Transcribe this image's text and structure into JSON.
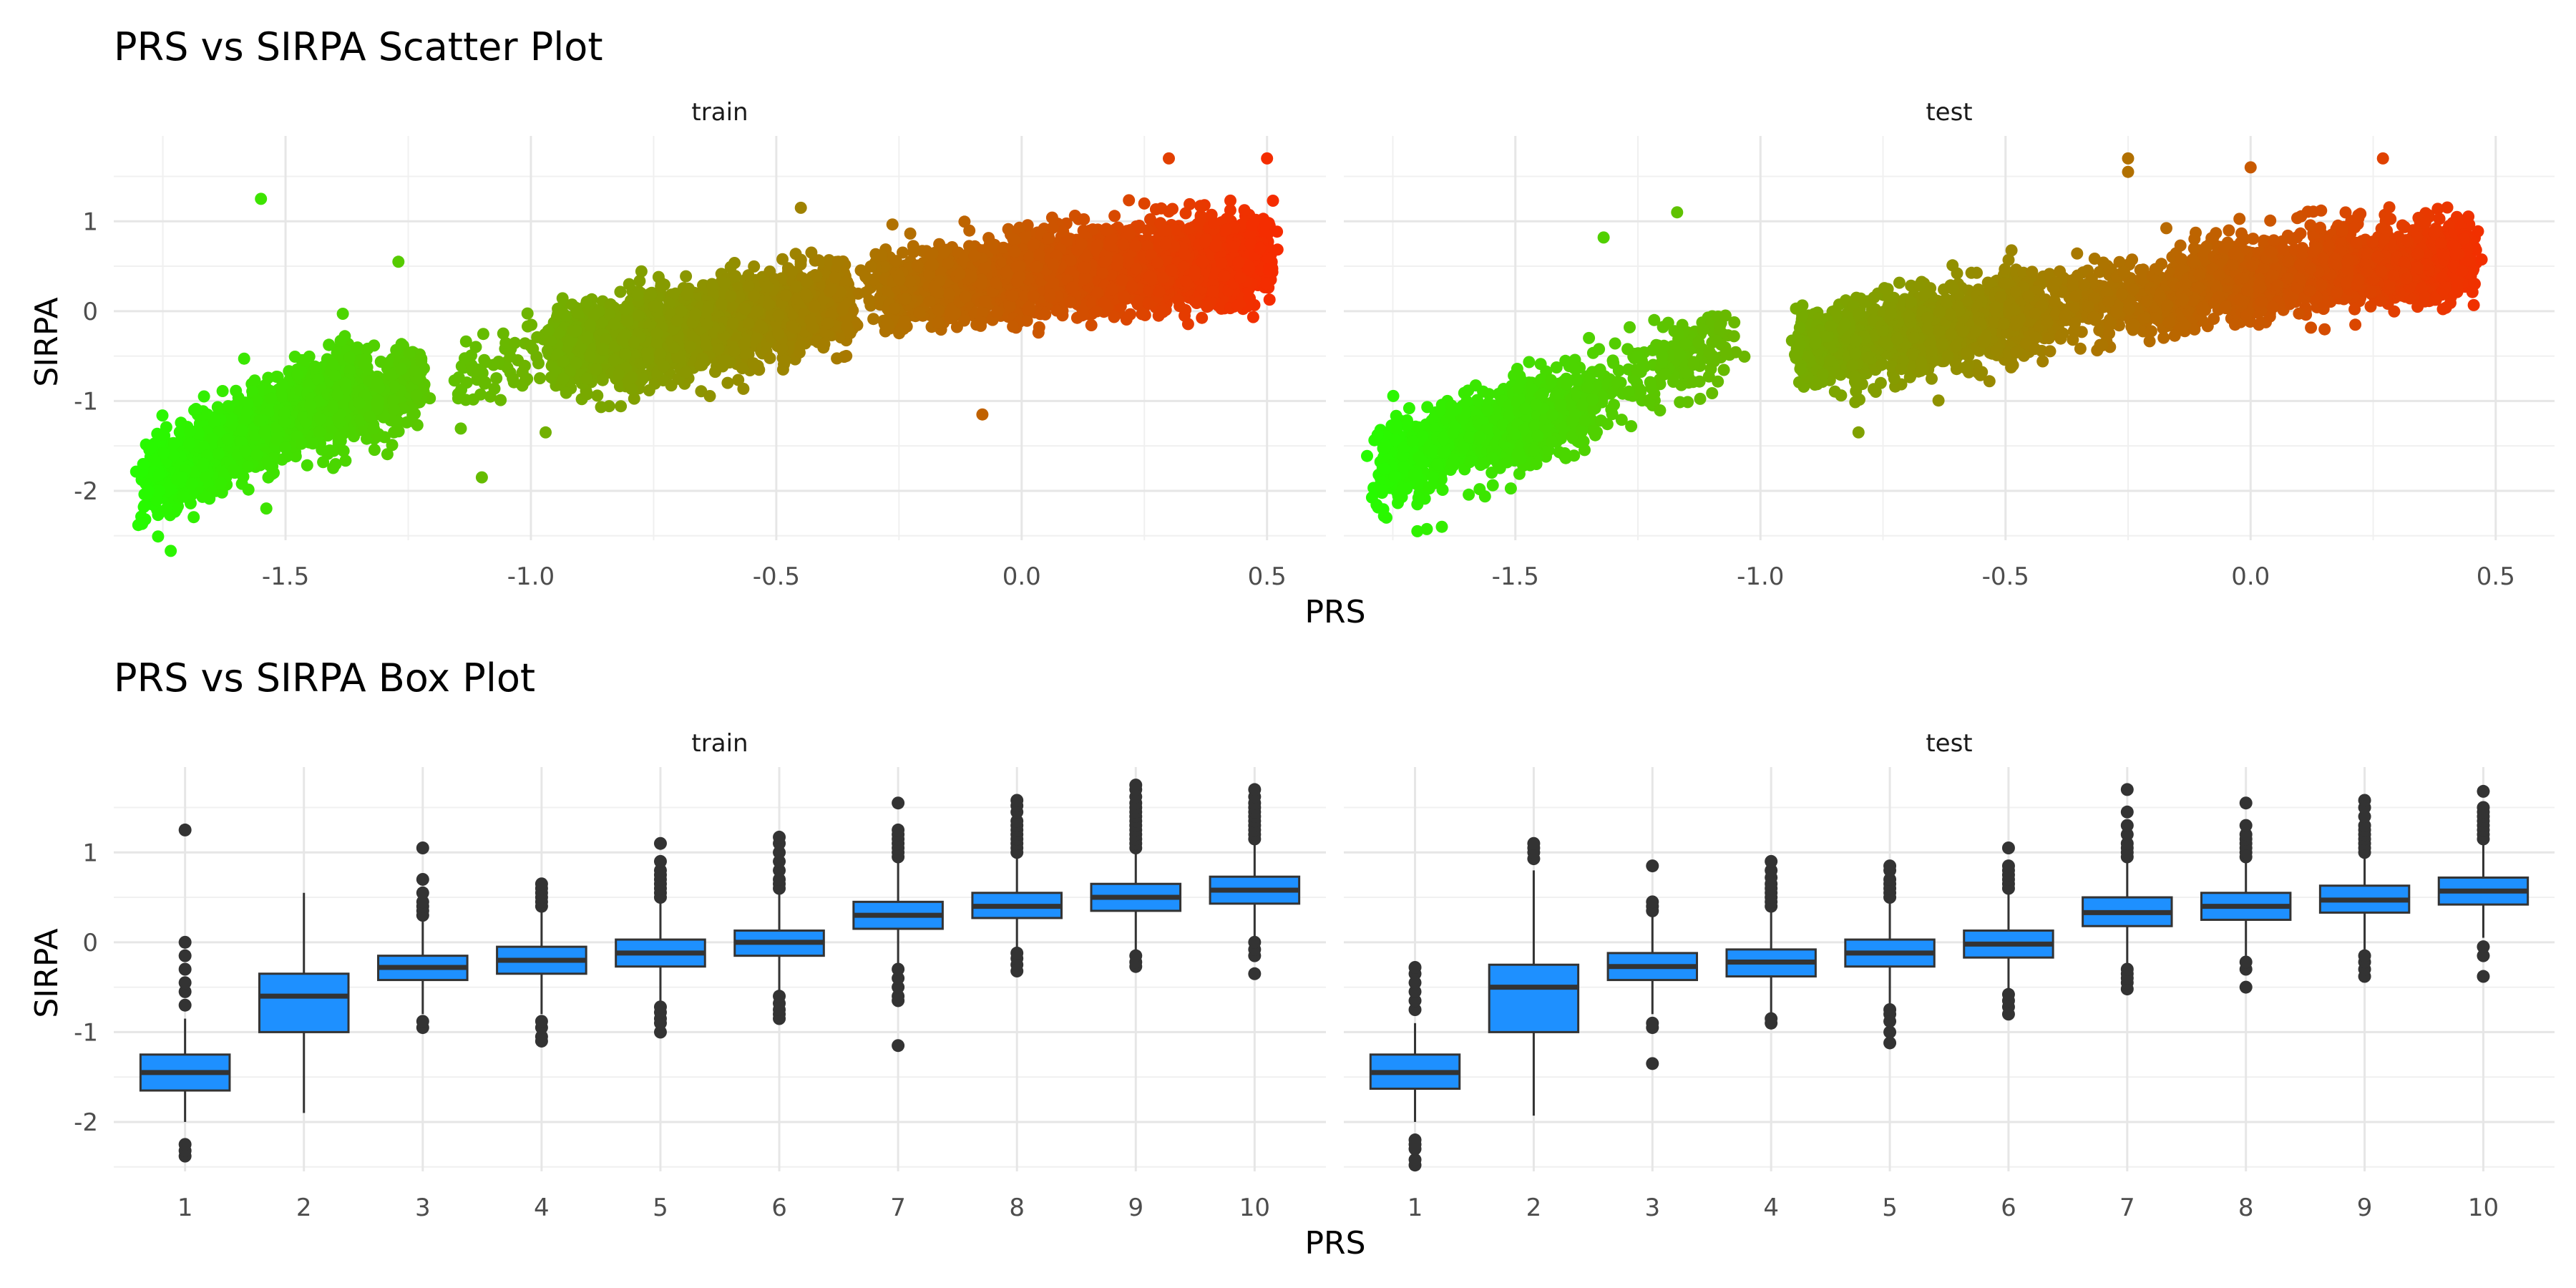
{
  "chart_data": [
    {
      "type": "scatter",
      "title": "PRS vs SIRPA Scatter Plot",
      "xlabel": "PRS",
      "ylabel": "SIRPA",
      "xlim": [
        -1.85,
        0.62
      ],
      "ylim": [
        -2.55,
        1.95
      ],
      "x_ticks": [
        -1.5,
        -1.0,
        -0.5,
        0.0,
        0.5
      ],
      "x_tick_labels": [
        "-1.5",
        "-1.0",
        "-0.5",
        "0.0",
        "0.5"
      ],
      "y_ticks": [
        1,
        0,
        -1,
        -2
      ],
      "y_tick_labels": [
        "1",
        "0",
        "-1",
        "-2"
      ],
      "grid": true,
      "color_scale": {
        "low": "#22ff00",
        "high": "#ff2200"
      },
      "facets": [
        {
          "label": "train",
          "clusters": [
            {
              "x_range": [
                -1.78,
                -1.35
              ],
              "y_mean_at_x_min": -1.9,
              "slope": 2.6,
              "count": 1700
            },
            {
              "x_range": [
                -1.45,
                -1.22
              ],
              "y_mean_at_x_min": -1.15,
              "slope": 1.5,
              "count": 450
            },
            {
              "x_range": [
                -1.15,
                -0.95
              ],
              "y_mean_at_x_min": -0.75,
              "slope": 1.6,
              "count": 70
            },
            {
              "x_range": [
                -0.95,
                -0.35
              ],
              "y_mean_at_x_min": -0.45,
              "slope": 0.95,
              "count": 2300
            },
            {
              "x_range": [
                -0.3,
                -0.02
              ],
              "y_mean_at_x_min": 0.25,
              "slope": 0.35,
              "count": 500
            },
            {
              "x_range": [
                -0.02,
                0.5
              ],
              "y_mean_at_x_min": 0.4,
              "slope": 0.4,
              "count": 2600
            }
          ],
          "outliers": [
            [
              -1.55,
              1.25
            ],
            [
              -1.27,
              0.55
            ],
            [
              -1.1,
              -1.85
            ],
            [
              -0.97,
              -1.35
            ],
            [
              -0.08,
              -1.15
            ],
            [
              0.5,
              1.7
            ],
            [
              -1.8,
              -2.38
            ],
            [
              0.3,
              1.7
            ],
            [
              -0.45,
              1.15
            ]
          ]
        },
        {
          "label": "test",
          "clusters": [
            {
              "x_range": [
                -1.78,
                -1.45
              ],
              "y_mean_at_x_min": -1.75,
              "slope": 2.0,
              "count": 700
            },
            {
              "x_range": [
                -1.55,
                -1.35
              ],
              "y_mean_at_x_min": -1.4,
              "slope": 1.6,
              "count": 350
            },
            {
              "x_range": [
                -1.35,
                -1.05
              ],
              "y_mean_at_x_min": -0.95,
              "slope": 2.2,
              "count": 200
            },
            {
              "x_range": [
                -0.92,
                -0.45
              ],
              "y_mean_at_x_min": -0.42,
              "slope": 0.8,
              "count": 1400
            },
            {
              "x_range": [
                -0.5,
                -0.15
              ],
              "y_mean_at_x_min": 0.0,
              "slope": 0.55,
              "count": 450
            },
            {
              "x_range": [
                -0.15,
                0.45
              ],
              "y_mean_at_x_min": 0.3,
              "slope": 0.5,
              "count": 1600
            }
          ],
          "outliers": [
            [
              -1.17,
              1.1
            ],
            [
              -1.32,
              0.82
            ],
            [
              -1.7,
              -2.45
            ],
            [
              -1.65,
              -2.4
            ],
            [
              -0.25,
              1.7
            ],
            [
              -0.25,
              1.55
            ],
            [
              0.27,
              1.7
            ],
            [
              0.0,
              1.6
            ],
            [
              -0.8,
              -1.35
            ]
          ]
        }
      ]
    },
    {
      "type": "box",
      "title": "PRS vs SIRPA Box Plot",
      "xlabel": "PRS",
      "ylabel": "SIRPA",
      "ylim": [
        -2.55,
        1.95
      ],
      "categories": [
        "1",
        "2",
        "3",
        "4",
        "5",
        "6",
        "7",
        "8",
        "9",
        "10"
      ],
      "y_ticks": [
        1,
        0,
        -1,
        -2
      ],
      "y_tick_labels": [
        "1",
        "0",
        "-1",
        "-2"
      ],
      "grid": true,
      "box_fill": "#1e90ff",
      "box_stroke": "#333333",
      "facets": [
        {
          "label": "train",
          "boxes": [
            {
              "q1": -1.65,
              "median": -1.45,
              "q3": -1.25,
              "whisker_low": -2.0,
              "whisker_high": -0.85,
              "outliers": [
                -2.38,
                -2.32,
                -2.25,
                -0.7,
                -0.55,
                -0.45,
                -0.3,
                -0.15,
                0.0,
                1.25
              ]
            },
            {
              "q1": -1.0,
              "median": -0.6,
              "q3": -0.35,
              "whisker_low": -1.9,
              "whisker_high": 0.55,
              "outliers": []
            },
            {
              "q1": -0.42,
              "median": -0.28,
              "q3": -0.15,
              "whisker_low": -0.8,
              "whisker_high": 0.25,
              "outliers": [
                -0.95,
                -0.88,
                0.3,
                0.35,
                0.4,
                0.45,
                0.55,
                0.7,
                1.05
              ]
            },
            {
              "q1": -0.35,
              "median": -0.2,
              "q3": -0.05,
              "whisker_low": -0.8,
              "whisker_high": 0.35,
              "outliers": [
                -1.1,
                -1.05,
                -0.95,
                -0.88,
                0.4,
                0.45,
                0.5,
                0.55,
                0.6,
                0.65
              ]
            },
            {
              "q1": -0.27,
              "median": -0.12,
              "q3": 0.03,
              "whisker_low": -0.65,
              "whisker_high": 0.45,
              "outliers": [
                -1.0,
                -0.9,
                -0.85,
                -0.78,
                -0.72,
                0.5,
                0.55,
                0.6,
                0.65,
                0.7,
                0.75,
                0.8,
                0.9,
                1.1
              ]
            },
            {
              "q1": -0.15,
              "median": 0.0,
              "q3": 0.13,
              "whisker_low": -0.55,
              "whisker_high": 0.55,
              "outliers": [
                -0.85,
                -0.8,
                -0.75,
                -0.68,
                -0.6,
                0.6,
                0.65,
                0.7,
                0.8,
                0.9,
                1.0,
                1.1,
                1.17
              ]
            },
            {
              "q1": 0.15,
              "median": 0.3,
              "q3": 0.45,
              "whisker_low": -0.25,
              "whisker_high": 0.9,
              "outliers": [
                -1.15,
                -0.65,
                -0.6,
                -0.5,
                -0.4,
                -0.3,
                0.95,
                1.0,
                1.05,
                1.1,
                1.15,
                1.2,
                1.25,
                1.55
              ]
            },
            {
              "q1": 0.27,
              "median": 0.4,
              "q3": 0.55,
              "whisker_low": -0.1,
              "whisker_high": 0.95,
              "outliers": [
                -0.32,
                -0.25,
                -0.18,
                -0.12,
                1.0,
                1.05,
                1.1,
                1.15,
                1.2,
                1.25,
                1.3,
                1.35,
                1.45,
                1.52,
                1.58
              ]
            },
            {
              "q1": 0.35,
              "median": 0.5,
              "q3": 0.65,
              "whisker_low": -0.1,
              "whisker_high": 1.0,
              "outliers": [
                -0.27,
                -0.22,
                -0.15,
                1.05,
                1.1,
                1.15,
                1.2,
                1.25,
                1.3,
                1.35,
                1.4,
                1.45,
                1.5,
                1.55,
                1.62,
                1.7,
                1.75
              ]
            },
            {
              "q1": 0.43,
              "median": 0.58,
              "q3": 0.73,
              "whisker_low": 0.05,
              "whisker_high": 1.1,
              "outliers": [
                -0.35,
                -0.15,
                -0.08,
                0.0,
                1.15,
                1.2,
                1.25,
                1.3,
                1.35,
                1.4,
                1.45,
                1.5,
                1.55,
                1.62,
                1.7
              ]
            }
          ]
        },
        {
          "label": "test",
          "boxes": [
            {
              "q1": -1.63,
              "median": -1.45,
              "q3": -1.25,
              "whisker_low": -2.0,
              "whisker_high": -0.9,
              "outliers": [
                -2.48,
                -2.42,
                -2.3,
                -2.25,
                -2.2,
                -0.75,
                -0.65,
                -0.55,
                -0.45,
                -0.35,
                -0.28
              ]
            },
            {
              "q1": -1.0,
              "median": -0.5,
              "q3": -0.25,
              "whisker_low": -1.93,
              "whisker_high": 0.8,
              "outliers": [
                0.93,
                1.0,
                1.05,
                1.1
              ]
            },
            {
              "q1": -0.42,
              "median": -0.27,
              "q3": -0.12,
              "whisker_low": -0.8,
              "whisker_high": 0.3,
              "outliers": [
                -1.35,
                -0.95,
                -0.9,
                0.35,
                0.4,
                0.45,
                0.85
              ]
            },
            {
              "q1": -0.38,
              "median": -0.22,
              "q3": -0.08,
              "whisker_low": -0.8,
              "whisker_high": 0.35,
              "outliers": [
                -0.9,
                -0.85,
                0.4,
                0.45,
                0.5,
                0.55,
                0.6,
                0.65,
                0.72,
                0.8,
                0.9
              ]
            },
            {
              "q1": -0.27,
              "median": -0.12,
              "q3": 0.03,
              "whisker_low": -0.7,
              "whisker_high": 0.45,
              "outliers": [
                -1.12,
                -1.0,
                -0.88,
                -0.8,
                -0.75,
                0.5,
                0.55,
                0.6,
                0.65,
                0.7,
                0.8,
                0.85
              ]
            },
            {
              "q1": -0.17,
              "median": -0.02,
              "q3": 0.13,
              "whisker_low": -0.55,
              "whisker_high": 0.55,
              "outliers": [
                -0.8,
                -0.72,
                -0.65,
                -0.58,
                0.6,
                0.65,
                0.7,
                0.75,
                0.8,
                0.85,
                1.05
              ]
            },
            {
              "q1": 0.18,
              "median": 0.33,
              "q3": 0.5,
              "whisker_low": -0.25,
              "whisker_high": 0.9,
              "outliers": [
                -0.52,
                -0.45,
                -0.4,
                -0.35,
                -0.3,
                0.95,
                1.0,
                1.05,
                1.1,
                1.2,
                1.3,
                1.45,
                1.7
              ]
            },
            {
              "q1": 0.25,
              "median": 0.4,
              "q3": 0.55,
              "whisker_low": -0.15,
              "whisker_high": 0.9,
              "outliers": [
                -0.5,
                -0.3,
                -0.22,
                0.95,
                1.0,
                1.05,
                1.1,
                1.15,
                1.2,
                1.3,
                1.55
              ]
            },
            {
              "q1": 0.33,
              "median": 0.47,
              "q3": 0.63,
              "whisker_low": -0.08,
              "whisker_high": 0.95,
              "outliers": [
                -0.38,
                -0.3,
                -0.22,
                -0.15,
                1.0,
                1.05,
                1.1,
                1.15,
                1.2,
                1.25,
                1.3,
                1.4,
                1.5,
                1.58
              ]
            },
            {
              "q1": 0.42,
              "median": 0.57,
              "q3": 0.72,
              "whisker_low": 0.05,
              "whisker_high": 1.1,
              "outliers": [
                -0.38,
                -0.15,
                -0.05,
                1.15,
                1.2,
                1.25,
                1.3,
                1.35,
                1.4,
                1.45,
                1.5,
                1.68
              ]
            }
          ]
        }
      ]
    }
  ]
}
